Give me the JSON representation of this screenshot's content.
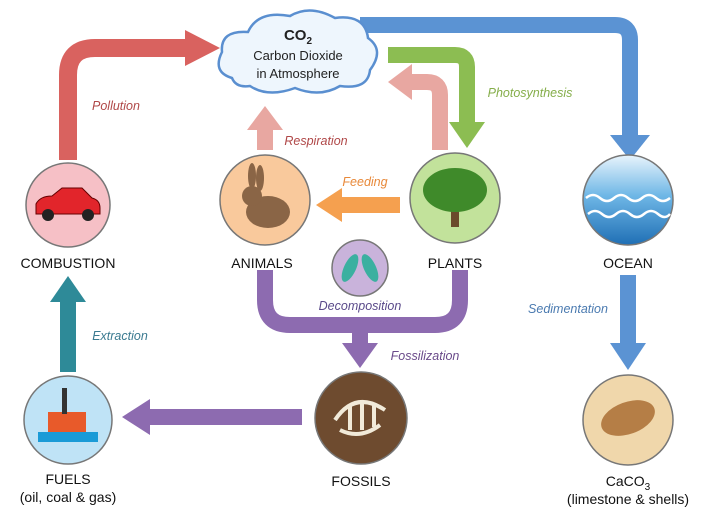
{
  "cloud": {
    "formula": {
      "main": "CO",
      "sub": "2"
    },
    "line1": "Carbon Dioxide",
    "line2": "in Atmosphere"
  },
  "nodes": {
    "combustion": "COMBUSTION",
    "animals": "ANIMALS",
    "plants": "PLANTS",
    "ocean": "OCEAN",
    "fuels": {
      "name": "FUELS",
      "note": "(oil, coal & gas)"
    },
    "fossils": "FOSSILS",
    "caco3": {
      "main": "CaCO",
      "sub": "3",
      "note": "(limestone & shells)"
    }
  },
  "processes": {
    "pollution": "Pollution",
    "respiration": "Respiration",
    "photosynthesis": "Photosynthesis",
    "feeding": "Feeding",
    "decomposition": "Decomposition",
    "fossilization": "Fossilization",
    "extraction": "Extraction",
    "sedimentation": "Sedimentation"
  }
}
